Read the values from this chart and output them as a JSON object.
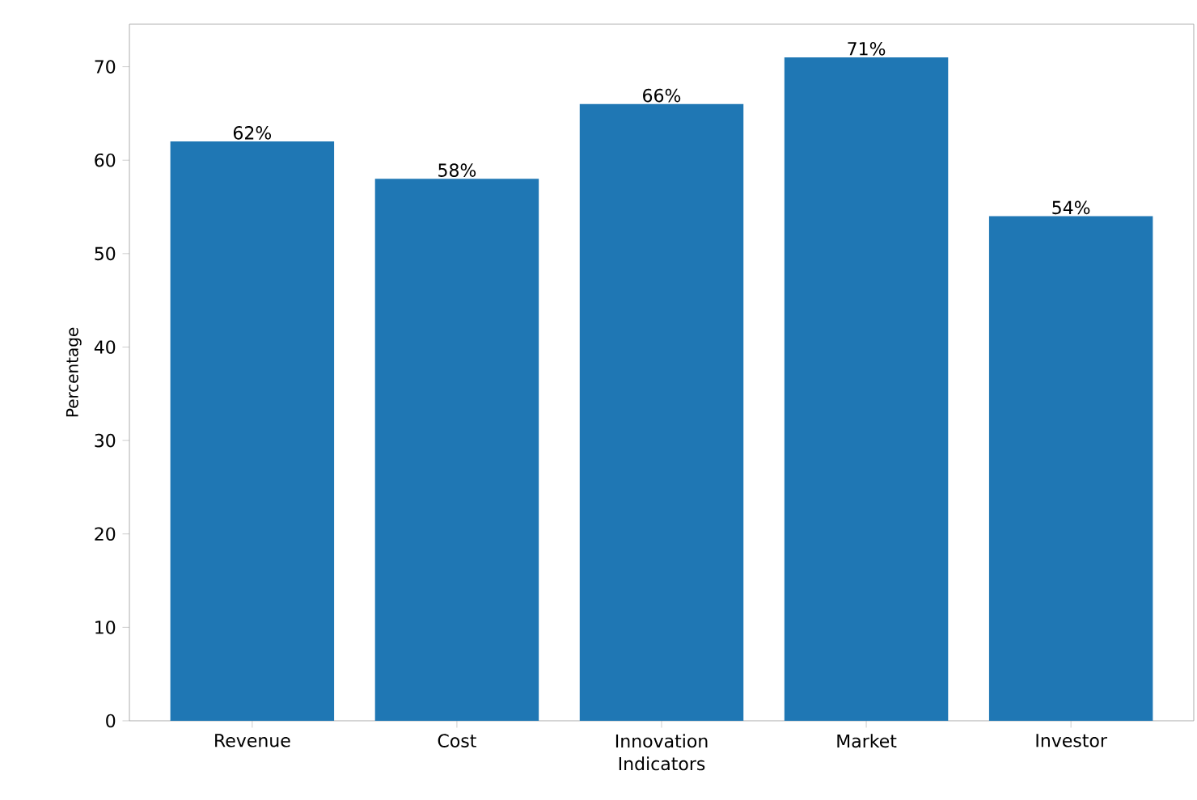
{
  "chart_data": {
    "type": "bar",
    "xlabel": "Indicators",
    "ylabel": "Percentage",
    "categories": [
      "Revenue",
      "Cost",
      "Innovation",
      "Market",
      "Investor"
    ],
    "values": [
      62,
      58,
      66,
      71,
      54
    ],
    "value_labels": [
      "62%",
      "58%",
      "66%",
      "71%",
      "54%"
    ],
    "color": "#1f77b4",
    "ylim": [
      0,
      74.55
    ],
    "yticks": [
      0,
      10,
      20,
      30,
      40,
      50,
      60,
      70
    ],
    "grid": false
  }
}
